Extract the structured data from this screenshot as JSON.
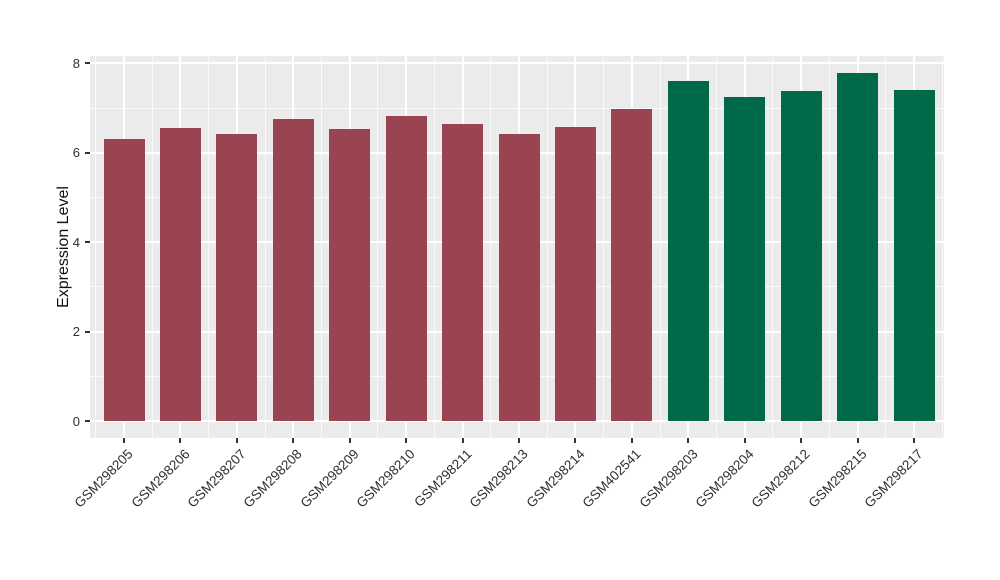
{
  "chart_data": {
    "type": "bar",
    "title": "",
    "xlabel": "",
    "ylabel": "Expression Level",
    "yticks": [
      0,
      2,
      4,
      6,
      8
    ],
    "ylim": [
      0,
      8.17
    ],
    "grid": "white major and minor gridlines on gray panel, ggplot style",
    "legend": "none",
    "categories": [
      "GSM298205",
      "GSM298206",
      "GSM298207",
      "GSM298208",
      "GSM298209",
      "GSM298210",
      "GSM298211",
      "GSM298213",
      "GSM298214",
      "GSM402541",
      "GSM298203",
      "GSM298204",
      "GSM298212",
      "GSM298215",
      "GSM298217"
    ],
    "values": [
      6.31,
      6.55,
      6.43,
      6.76,
      6.54,
      6.82,
      6.64,
      6.43,
      6.58,
      6.99,
      7.6,
      7.25,
      7.39,
      7.78,
      7.4
    ],
    "bar_groups": [
      "red",
      "red",
      "red",
      "red",
      "red",
      "red",
      "red",
      "red",
      "red",
      "red",
      "green",
      "green",
      "green",
      "green",
      "green"
    ],
    "group_colors": {
      "red": "#9A4452",
      "green": "#00694A"
    }
  },
  "colors": {
    "panel_background": "#EBEBEB",
    "gridline": "#FFFFFF",
    "axis_text": "#2F2F2F",
    "axis_title": "#111111",
    "tick_mark": "#333333",
    "page_background": "#FFFFFF"
  }
}
